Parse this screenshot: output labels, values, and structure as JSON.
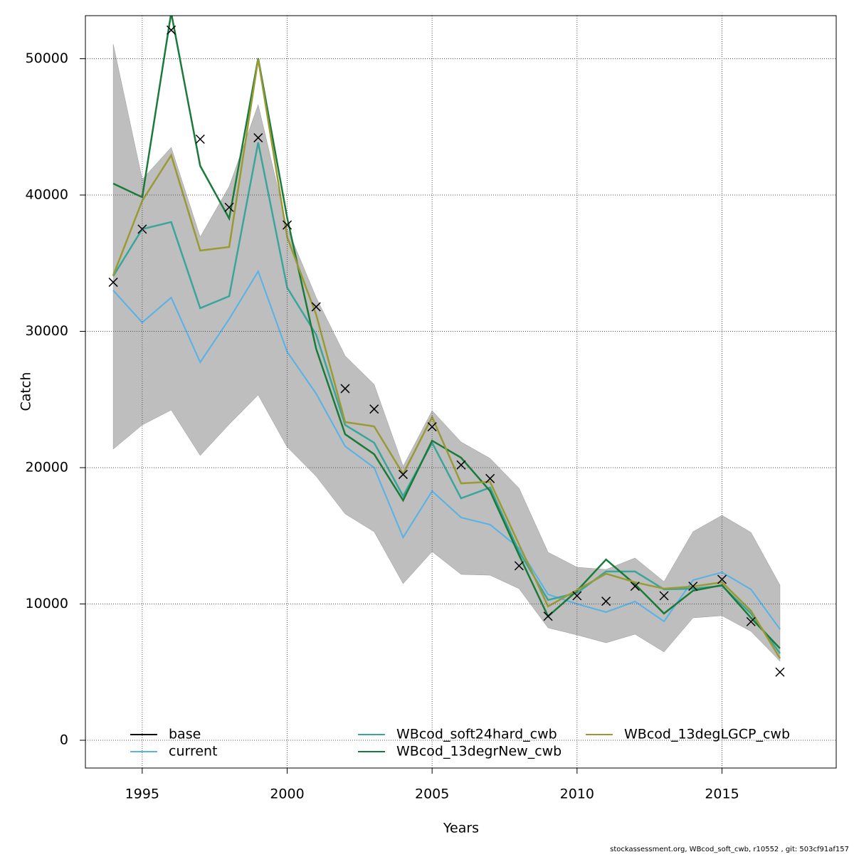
{
  "chart_data": {
    "type": "line",
    "x_label": "Years",
    "y_label": "Catch",
    "footer": "stockassessment.org, WBcod_soft_cwb, r10552 , git: 503cf91af157",
    "x": [
      1994,
      1995,
      1996,
      1997,
      1998,
      1999,
      2000,
      2001,
      2002,
      2003,
      2004,
      2005,
      2006,
      2007,
      2008,
      2009,
      2010,
      2011,
      2012,
      2013,
      2014,
      2015,
      2016,
      2017
    ],
    "xlim": [
      1993.04,
      2018.94
    ],
    "xticks": [
      1995,
      2000,
      2005,
      2010,
      2015
    ],
    "ylim": [
      -2037,
      53160
    ],
    "yticks": [
      0,
      10000,
      20000,
      30000,
      40000,
      50000
    ],
    "grid": true,
    "band": {
      "color": "#bebebe",
      "upper": [
        51070,
        41150,
        43500,
        36920,
        40630,
        46630,
        37600,
        32480,
        28200,
        26110,
        20100,
        24180,
        21880,
        20680,
        18490,
        13790,
        12690,
        12530,
        13370,
        11640,
        15300,
        16500,
        15250,
        11380
      ],
      "lower": [
        21360,
        23130,
        24230,
        20890,
        23180,
        25330,
        21510,
        19370,
        16610,
        15300,
        11490,
        13840,
        12170,
        12110,
        11120,
        8250,
        7730,
        7150,
        7780,
        6480,
        8980,
        9140,
        7990,
        5800
      ]
    },
    "observed": {
      "color": "#000000",
      "values": [
        33600,
        37500,
        52100,
        44100,
        39100,
        44200,
        37800,
        31800,
        25800,
        24300,
        19500,
        23000,
        20200,
        19200,
        12800,
        9100,
        10600,
        10200,
        11300,
        10600,
        11300,
        11800,
        8700,
        5000
      ]
    },
    "series": [
      {
        "name": "base",
        "color": "#000000",
        "values": [
          33000,
          30650,
          32480,
          27730,
          30900,
          34400,
          28500,
          25430,
          21570,
          20000,
          14880,
          18280,
          16340,
          15820,
          14100,
          10700,
          10000,
          9400,
          10180,
          8720,
          11750,
          12320,
          11070,
          8150
        ]
      },
      {
        "name": "current",
        "color": "#56b4e9",
        "values": [
          33000,
          30650,
          32480,
          27730,
          30900,
          34400,
          28500,
          25430,
          21570,
          20000,
          14880,
          18280,
          16340,
          15820,
          14100,
          10700,
          10000,
          9400,
          10180,
          8720,
          11750,
          12320,
          11070,
          8150
        ]
      },
      {
        "name": "WBcod_soft24hard_cwb",
        "color": "#3aa59a",
        "values": [
          34050,
          37500,
          38020,
          31700,
          32580,
          43860,
          33210,
          29760,
          23130,
          21830,
          17910,
          21830,
          17750,
          18540,
          13840,
          10290,
          10810,
          12380,
          12380,
          11070,
          11120,
          11330,
          9300,
          6370
        ]
      },
      {
        "name": "WBcod_13degrNew_cwb",
        "color": "#1a7a3a",
        "values": [
          40840,
          39840,
          53370,
          42140,
          38280,
          50030,
          38330,
          28720,
          22450,
          20990,
          17600,
          21980,
          20730,
          18280,
          13580,
          9090,
          10970,
          13260,
          11440,
          9300,
          10970,
          11380,
          8980,
          6740
        ]
      },
      {
        "name": "WBcod_13degLGCP_cwb",
        "color": "#9a9a35",
        "values": [
          34100,
          39580,
          42920,
          35930,
          36190,
          49970,
          36920,
          31230,
          23340,
          23030,
          19530,
          23710,
          18850,
          18960,
          14360,
          9820,
          11020,
          12220,
          11590,
          11120,
          11280,
          11590,
          9500,
          6010
        ]
      }
    ]
  }
}
